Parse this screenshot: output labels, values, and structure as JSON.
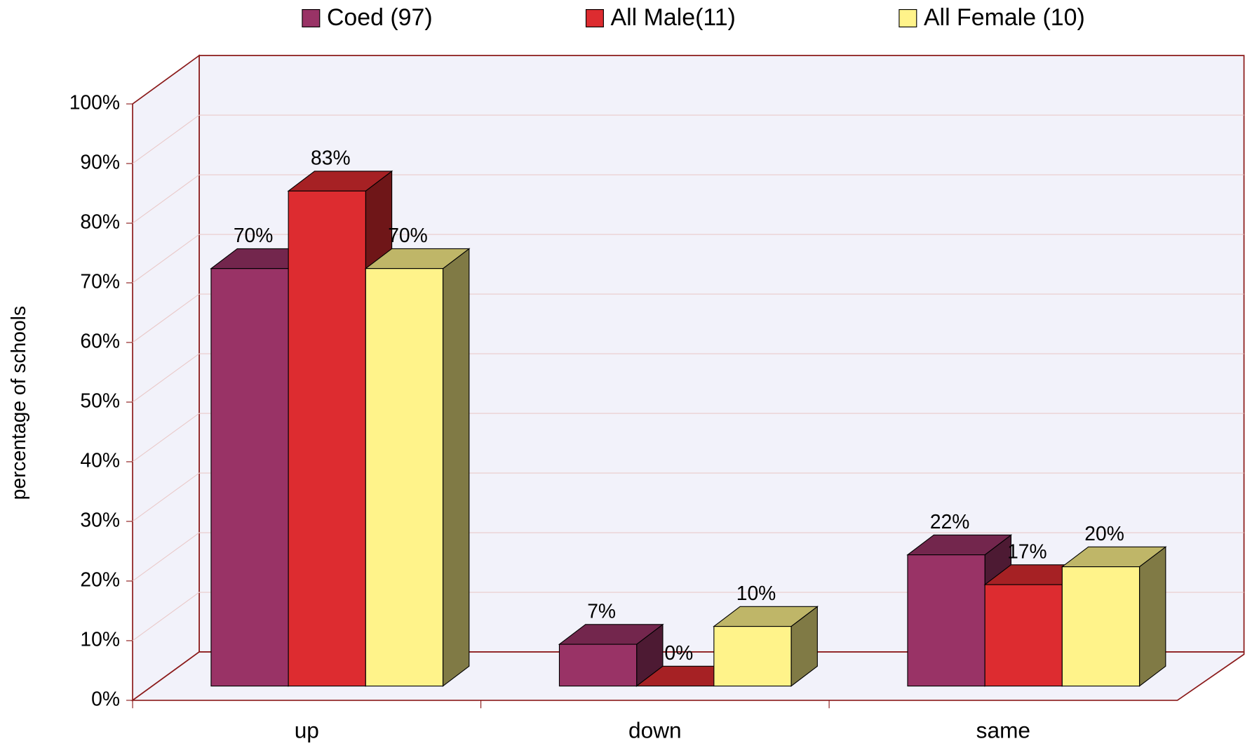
{
  "chart_data": {
    "type": "bar3d",
    "categories": [
      "up",
      "down",
      "same"
    ],
    "series": [
      {
        "name": "Coed (97)",
        "color": "#993366",
        "values": [
          70,
          7,
          22
        ],
        "value_labels": [
          "70%",
          "7%",
          "22%"
        ]
      },
      {
        "name": "All Male(11)",
        "color": "#dd2c30",
        "values": [
          83,
          0,
          17
        ],
        "value_labels": [
          "83%",
          "0%",
          "17%"
        ]
      },
      {
        "name": "All Female (10)",
        "color": "#fff38a",
        "values": [
          70,
          10,
          20
        ],
        "value_labels": [
          "70%",
          "10%",
          "20%"
        ]
      }
    ],
    "y_label": "percentage of schools",
    "ylim": [
      0,
      100
    ],
    "yticks": [
      {
        "value": 0,
        "label": "0%"
      },
      {
        "value": 10,
        "label": "10%"
      },
      {
        "value": 20,
        "label": "20%"
      },
      {
        "value": 30,
        "label": "30%"
      },
      {
        "value": 40,
        "label": "40%"
      },
      {
        "value": 50,
        "label": "50%"
      },
      {
        "value": 60,
        "label": "60%"
      },
      {
        "value": 70,
        "label": "70%"
      },
      {
        "value": 80,
        "label": "80%"
      },
      {
        "value": 90,
        "label": "90%"
      },
      {
        "value": 100,
        "label": "100%"
      }
    ],
    "grid": true,
    "legend": "top"
  }
}
